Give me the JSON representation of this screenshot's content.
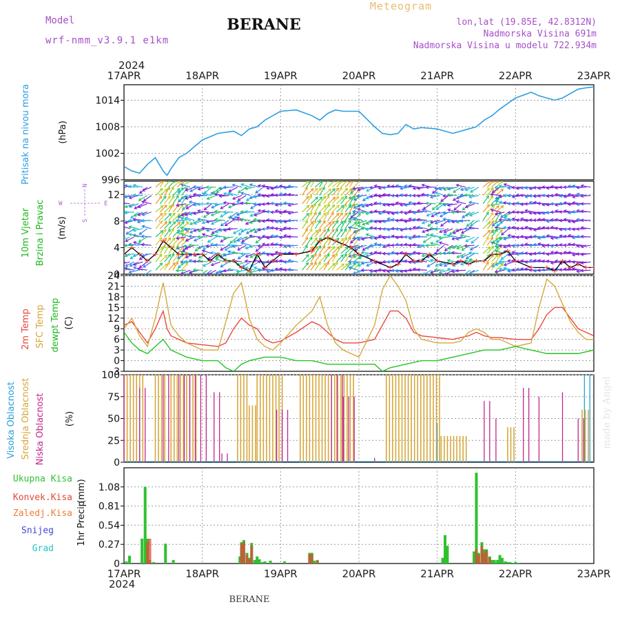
{
  "header": {
    "model_label": "Model",
    "model_name": "wrf-nmm_v3.9.1 e1km",
    "station": "BERANE",
    "meteogram": "Meteogram",
    "lonlat": "lon,lat (19.85E, 42.8312N)",
    "elevation": "Nadmorska Visina 691m",
    "model_elevation": "Nadmorska Visina u modelu 722.934m"
  },
  "footer": {
    "station": "BERANE",
    "watermark": "made by Angel"
  },
  "time_axis": {
    "year": "2024",
    "days": [
      "17APR",
      "18APR",
      "19APR",
      "20APR",
      "21APR",
      "22APR",
      "23APR"
    ]
  },
  "colors": {
    "pressure": "#2a9de0",
    "temp2m": "#e8463c",
    "sfc": "#d6a73a",
    "dewpt": "#22c322",
    "high_cloud": "#26a0d8",
    "mid_cloud": "#d6a73a",
    "low_cloud": "#c0268a",
    "precip_total": "#2fc12f",
    "precip_conv": "#e04a3a",
    "precip_frozen": "#ef7e34",
    "snow": "#4545d8",
    "grad": "#28c4c4",
    "wind_label": "#1bb81b",
    "header_purple": "#a64fc9",
    "header_orange": "#e6bd70"
  },
  "chart_data": [
    {
      "type": "line",
      "title": "",
      "ylabel": "Pritisak na nivou mora",
      "unit": "(hPa)",
      "yticks": [
        "996",
        "1002",
        "1008",
        "1014"
      ],
      "ylim": [
        996,
        1017.5
      ],
      "series": [
        {
          "name": "Pritisak na nivou mora",
          "x": [
            0,
            0.1,
            0.2,
            0.25,
            0.3,
            0.4,
            0.45,
            0.5,
            0.55,
            0.6,
            0.7,
            0.75,
            0.8,
            0.9,
            1.0,
            1.2,
            1.4,
            1.5,
            1.6,
            1.7,
            1.8,
            2.0,
            2.2,
            2.4,
            2.5,
            2.6,
            2.7,
            2.8,
            3.0,
            3.2,
            3.3,
            3.4,
            3.5,
            3.6,
            3.7,
            3.8,
            4.0,
            4.2,
            4.3,
            4.4,
            4.5,
            4.6,
            4.7,
            4.8,
            5.0,
            5.2,
            5.3,
            5.4,
            5.5,
            5.6,
            5.7,
            5.8,
            5.9,
            6.0
          ],
          "values": [
            999,
            998,
            997.5,
            998.5,
            999.5,
            1001,
            999.5,
            998,
            997,
            998.5,
            1001,
            1001.5,
            1002,
            1003.5,
            1005,
            1006.5,
            1007,
            1006,
            1007.5,
            1008,
            1009.5,
            1011.5,
            1011.8,
            1010.5,
            1009.5,
            1011,
            1011.8,
            1011.5,
            1011.5,
            1008,
            1006.5,
            1006.2,
            1006.5,
            1008.5,
            1007.5,
            1007.8,
            1007.5,
            1006.5,
            1007,
            1007.5,
            1008,
            1009.5,
            1010.5,
            1012,
            1014.5,
            1015.8,
            1015,
            1014.5,
            1014,
            1014.5,
            1015.5,
            1016.5,
            1016.8,
            1017
          ]
        }
      ]
    },
    {
      "type": "wind",
      "title": "",
      "ylabel": "10m Vjetar Brzina i Pravac",
      "unit": "(m/s)",
      "compass": [
        "N",
        "E",
        "S",
        "W"
      ],
      "yticks": [
        "0",
        "4",
        "8",
        "12"
      ],
      "ylim": [
        0,
        14
      ],
      "series": [
        {
          "name": "speed",
          "x": [
            0,
            0.1,
            0.2,
            0.3,
            0.4,
            0.5,
            0.6,
            0.7,
            0.8,
            0.9,
            1.0,
            1.1,
            1.2,
            1.3,
            1.4,
            1.5,
            1.6,
            1.7,
            1.8,
            1.9,
            2.0,
            2.2,
            2.4,
            2.5,
            2.6,
            2.7,
            2.8,
            2.9,
            3.0,
            3.2,
            3.4,
            3.5,
            3.6,
            3.7,
            3.8,
            3.9,
            4.0,
            4.2,
            4.3,
            4.4,
            4.5,
            4.6,
            4.7,
            4.8,
            4.9,
            5.0,
            5.2,
            5.4,
            5.5,
            5.6,
            5.7,
            5.8,
            5.9,
            6.0
          ],
          "values": [
            3,
            4,
            3,
            2,
            3,
            5,
            4,
            3,
            3,
            3,
            3,
            2,
            3,
            2,
            2,
            1,
            0.5,
            3,
            1,
            2,
            3,
            3,
            3.5,
            5,
            5.5,
            5,
            4.5,
            4,
            3,
            2,
            1,
            1.5,
            3,
            2,
            2,
            3,
            2,
            1.5,
            2,
            1.5,
            2,
            2,
            3,
            3,
            3.5,
            2,
            1,
            1,
            0.5,
            2,
            1,
            1.5,
            1,
            1
          ]
        }
      ]
    },
    {
      "type": "line",
      "title": "",
      "ylabel": "2m Temp SFC Temp dewpt Temp",
      "unit": "(C)",
      "yticks": [
        "-3",
        "0",
        "3",
        "6",
        "9",
        "12",
        "15",
        "18",
        "21",
        "24"
      ],
      "ylim": [
        -3,
        24
      ],
      "series": [
        {
          "name": "2m Temp",
          "x": [
            0,
            0.1,
            0.2,
            0.3,
            0.4,
            0.5,
            0.55,
            0.6,
            0.7,
            0.8,
            1.0,
            1.2,
            1.3,
            1.4,
            1.5,
            1.6,
            1.7,
            1.8,
            1.9,
            2.0,
            2.2,
            2.4,
            2.5,
            2.6,
            2.7,
            2.8,
            3.0,
            3.2,
            3.3,
            3.4,
            3.5,
            3.6,
            3.7,
            3.8,
            4.0,
            4.2,
            4.3,
            4.4,
            4.5,
            4.6,
            4.7,
            4.8,
            5.0,
            5.2,
            5.3,
            5.4,
            5.5,
            5.6,
            5.7,
            5.8,
            5.9,
            6.0
          ],
          "values": [
            10,
            11,
            8,
            5,
            9,
            14,
            9,
            7,
            6,
            5,
            4.5,
            4,
            5,
            9,
            12,
            10,
            9,
            6,
            5,
            5.5,
            8,
            11,
            10,
            8,
            6,
            5,
            5,
            6,
            10,
            14,
            14,
            12,
            8,
            7,
            6.5,
            6,
            6.5,
            7,
            8,
            7,
            6.5,
            6.5,
            6,
            6,
            9,
            13,
            15,
            15,
            12,
            9,
            8,
            7
          ]
        },
        {
          "name": "SFC Temp",
          "x": [
            0,
            0.1,
            0.2,
            0.3,
            0.4,
            0.5,
            0.55,
            0.6,
            0.7,
            0.8,
            1.0,
            1.2,
            1.3,
            1.4,
            1.5,
            1.6,
            1.7,
            1.8,
            1.9,
            2.0,
            2.2,
            2.4,
            2.5,
            2.6,
            2.7,
            2.8,
            3.0,
            3.2,
            3.3,
            3.4,
            3.5,
            3.6,
            3.7,
            3.8,
            4.0,
            4.2,
            4.3,
            4.4,
            4.5,
            4.6,
            4.7,
            4.8,
            5.0,
            5.2,
            5.3,
            5.4,
            5.5,
            5.6,
            5.7,
            5.8,
            5.9,
            6.0
          ],
          "values": [
            9,
            12,
            7,
            4,
            12,
            22,
            16,
            10,
            7,
            5,
            3,
            3,
            11,
            19,
            22,
            12,
            6,
            4,
            3,
            5,
            10,
            14,
            18,
            10,
            5,
            3,
            1,
            10,
            20,
            24,
            21,
            17,
            9,
            6,
            5,
            5,
            5.5,
            8,
            9,
            8,
            6,
            6,
            4,
            5,
            15,
            23,
            21,
            16,
            11,
            8,
            6,
            6
          ]
        },
        {
          "name": "dewpt Temp",
          "x": [
            0,
            0.1,
            0.2,
            0.3,
            0.4,
            0.5,
            0.6,
            0.8,
            1.0,
            1.2,
            1.3,
            1.4,
            1.5,
            1.6,
            1.8,
            2.0,
            2.2,
            2.4,
            2.6,
            2.8,
            3.0,
            3.2,
            3.3,
            3.4,
            3.6,
            3.8,
            4.0,
            4.2,
            4.4,
            4.6,
            4.8,
            5.0,
            5.2,
            5.4,
            5.6,
            5.8,
            6.0
          ],
          "values": [
            8,
            5,
            3,
            2,
            4,
            6,
            3,
            1,
            0,
            0,
            -2,
            -3,
            -1,
            0,
            1,
            1,
            0,
            0,
            -1,
            -1,
            -1,
            -1,
            -3,
            -2,
            -1,
            0,
            0,
            1,
            2,
            3,
            3,
            4,
            3,
            2,
            2,
            2,
            3
          ]
        }
      ]
    },
    {
      "type": "bar",
      "title": "",
      "ylabel": "Visoka Oblacnost Srednja Oblacnost Niska Oblacnost",
      "unit": "(%)",
      "yticks": [
        "0",
        "25",
        "50",
        "75",
        "100"
      ],
      "ylim": [
        0,
        100
      ],
      "series": [
        {
          "name": "Visoka Oblacnost",
          "segments": [
            [
              4.0,
              4.05,
              45
            ],
            [
              5.88,
              5.95,
              100
            ]
          ]
        },
        {
          "name": "Srednja Oblacnost",
          "segments": [
            [
              0.0,
              0.25,
              100
            ],
            [
              0.4,
              0.55,
              100
            ],
            [
              0.6,
              0.95,
              100
            ],
            [
              1.45,
              1.6,
              100
            ],
            [
              1.6,
              1.7,
              65
            ],
            [
              1.7,
              2.05,
              100
            ],
            [
              2.25,
              2.95,
              100
            ],
            [
              3.35,
              4.05,
              100
            ],
            [
              4.05,
              4.4,
              30
            ],
            [
              4.9,
              5.0,
              40
            ],
            [
              5.85,
              5.95,
              60
            ]
          ]
        },
        {
          "name": "Niska Oblacnost",
          "segments": [
            [
              0.0,
              0.05,
              100
            ],
            [
              0.2,
              0.3,
              85
            ],
            [
              0.5,
              0.6,
              100
            ],
            [
              0.7,
              1.05,
              100
            ],
            [
              1.15,
              1.25,
              80
            ],
            [
              1.25,
              1.35,
              10
            ],
            [
              1.95,
              2.1,
              60
            ],
            [
              2.65,
              2.8,
              100
            ],
            [
              2.8,
              2.95,
              75
            ],
            [
              3.2,
              3.25,
              5
            ],
            [
              4.6,
              4.7,
              70
            ],
            [
              4.75,
              4.8,
              50
            ],
            [
              5.1,
              5.2,
              85
            ],
            [
              5.3,
              5.35,
              75
            ],
            [
              5.6,
              5.65,
              80
            ],
            [
              5.8,
              5.9,
              50
            ]
          ]
        }
      ]
    },
    {
      "type": "bar",
      "title": "",
      "ylabel": "1hr Precip",
      "unit": "(mm)",
      "yticks": [
        "0",
        "0.27",
        "0.54",
        "0.81",
        "1.08"
      ],
      "ylim": [
        0,
        1.35
      ],
      "legend": [
        "Ukupna Kisa",
        "Konvek.Kisa",
        "Zaledj.Kisa",
        "Snijeg",
        "Grad"
      ],
      "series": [
        {
          "name": "Ukupna Kisa",
          "x": [
            0.03,
            0.07,
            0.23,
            0.27,
            0.3,
            0.33,
            0.38,
            0.53,
            0.63,
            1.48,
            1.5,
            1.53,
            1.57,
            1.6,
            1.63,
            1.67,
            1.7,
            1.73,
            1.77,
            1.8,
            1.87,
            2.05,
            2.37,
            2.4,
            2.43,
            2.47,
            4.07,
            4.1,
            4.13,
            4.47,
            4.5,
            4.53,
            4.57,
            4.6,
            4.63,
            4.67,
            4.7,
            4.73,
            4.77,
            4.8,
            4.83,
            4.87,
            4.9,
            4.93,
            4.97,
            5.0,
            5.03
          ],
          "values": [
            0.03,
            0.11,
            0.35,
            1.08,
            0.35,
            0.05,
            0.02,
            0.28,
            0.05,
            0.1,
            0.3,
            0.33,
            0.15,
            0.08,
            0.29,
            0.05,
            0.1,
            0.06,
            0.02,
            0.03,
            0.04,
            0.03,
            0.15,
            0.15,
            0.04,
            0.05,
            0.08,
            0.4,
            0.25,
            0.17,
            1.28,
            0.15,
            0.3,
            0.2,
            0.2,
            0.1,
            0.05,
            0.05,
            0.05,
            0.12,
            0.08,
            0.03,
            0.02,
            0.02,
            0.01,
            0.02,
            0.01
          ]
        },
        {
          "name": "Konvek.Kisa",
          "x": [
            0.3,
            0.33,
            1.5,
            1.53,
            1.57,
            1.6,
            1.63,
            2.37,
            2.4,
            2.47,
            4.5,
            4.53,
            4.57,
            4.6,
            4.63,
            4.67
          ],
          "values": [
            0.3,
            0.35,
            0.28,
            0.3,
            0.12,
            0.06,
            0.25,
            0.13,
            0.13,
            0.04,
            0.2,
            0.12,
            0.25,
            0.15,
            0.18,
            0.08
          ]
        }
      ]
    }
  ]
}
